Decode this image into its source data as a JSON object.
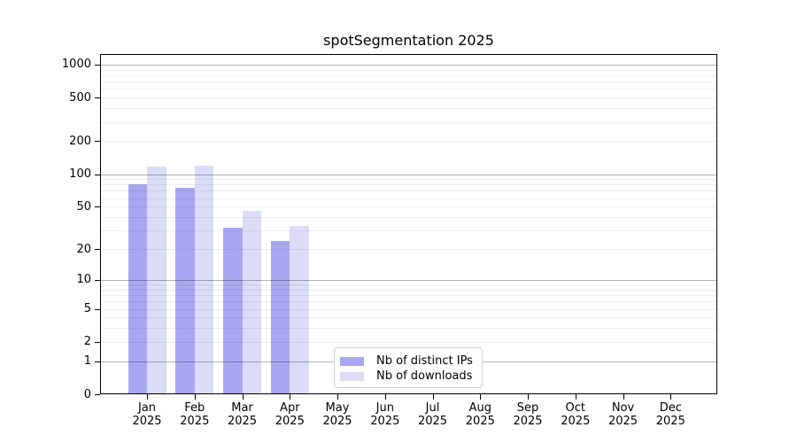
{
  "title": "spotSegmentation 2025",
  "chart_data": {
    "type": "bar",
    "title": "spotSegmentation 2025",
    "categories": [
      "Jan",
      "Feb",
      "Mar",
      "Apr",
      "May",
      "Jun",
      "Jul",
      "Aug",
      "Sep",
      "Oct",
      "Nov",
      "Dec"
    ],
    "category_year": "2025",
    "series": [
      {
        "name": "Nb of distinct IPs",
        "color": "#a8a8f2",
        "values": [
          80,
          75,
          32,
          24,
          0,
          0,
          0,
          0,
          0,
          0,
          0,
          0
        ]
      },
      {
        "name": "Nb of downloads",
        "color": "#dcdcf8",
        "values": [
          118,
          120,
          46,
          33,
          0,
          0,
          0,
          0,
          0,
          0,
          0,
          0
        ]
      }
    ],
    "xlabel": "",
    "ylabel": "",
    "yscale": "log1p",
    "yticks": [
      0,
      1,
      2,
      5,
      10,
      20,
      50,
      100,
      200,
      500,
      1000
    ],
    "ylim": [
      0,
      1250
    ],
    "grid": true,
    "grid_major_at": [
      1,
      10,
      100,
      1000
    ],
    "legend_position": "lower-center"
  },
  "colors": {
    "background": "#ffffff",
    "series1": "#a8a8f2",
    "series2": "#dcdcf8",
    "spine": "#000000",
    "legend_border": "#d0d0d0"
  }
}
